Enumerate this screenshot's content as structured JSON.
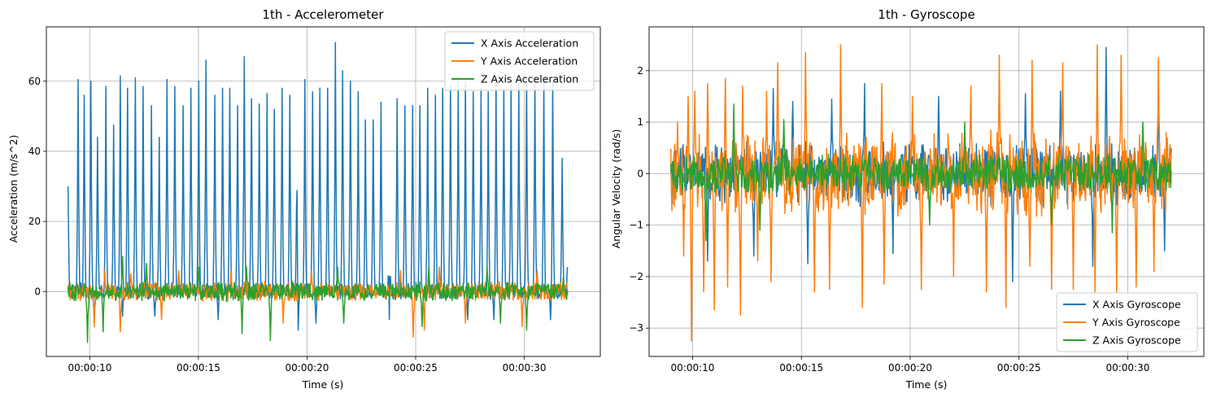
{
  "colors": {
    "x": "#1f77b4",
    "y": "#ff7f0e",
    "z": "#2ca02c",
    "grid": "#b0b0b0"
  },
  "chart_data": [
    {
      "type": "line",
      "title": "1th - Accelerometer",
      "xlabel": "Time (s)",
      "ylabel": "Acceleration (m/s^2)",
      "xlim_seconds": [
        8.0,
        33.5
      ],
      "ylim": [
        -18.5,
        75.5
      ],
      "x_ticks": [
        {
          "value": 10,
          "label": "00:00:10"
        },
        {
          "value": 15,
          "label": "00:00:15"
        },
        {
          "value": 20,
          "label": "00:00:20"
        },
        {
          "value": 25,
          "label": "00:00:25"
        },
        {
          "value": 30,
          "label": "00:00:30"
        }
      ],
      "y_ticks": [
        {
          "value": 0,
          "label": "0"
        },
        {
          "value": 20,
          "label": "20"
        },
        {
          "value": 40,
          "label": "40"
        },
        {
          "value": 60,
          "label": "60"
        }
      ],
      "grid": true,
      "legend_position": "top-right",
      "time_range_seconds": [
        9.0,
        32.0
      ],
      "series": [
        {
          "name": "X Axis Acceleration",
          "color_key": "x",
          "baseline": 0,
          "noise": 3.5,
          "start_value": 30,
          "end_value": 7,
          "peaks": [
            {
              "t": 9.45,
              "v": 60.5
            },
            {
              "t": 9.75,
              "v": 56
            },
            {
              "t": 10.05,
              "v": 60
            },
            {
              "t": 10.35,
              "v": 44
            },
            {
              "t": 10.75,
              "v": 58.5
            },
            {
              "t": 11.1,
              "v": 47.5
            },
            {
              "t": 11.4,
              "v": 61.5
            },
            {
              "t": 11.75,
              "v": 58
            },
            {
              "t": 12.1,
              "v": 61
            },
            {
              "t": 12.45,
              "v": 58.5
            },
            {
              "t": 12.85,
              "v": 53
            },
            {
              "t": 13.2,
              "v": 44
            },
            {
              "t": 13.55,
              "v": 60.5
            },
            {
              "t": 13.9,
              "v": 58.5
            },
            {
              "t": 14.3,
              "v": 53
            },
            {
              "t": 14.65,
              "v": 58
            },
            {
              "t": 15.0,
              "v": 60
            },
            {
              "t": 15.35,
              "v": 66
            },
            {
              "t": 15.75,
              "v": 56
            },
            {
              "t": 16.1,
              "v": 58
            },
            {
              "t": 16.45,
              "v": 58
            },
            {
              "t": 16.8,
              "v": 53
            },
            {
              "t": 17.1,
              "v": 67
            },
            {
              "t": 17.45,
              "v": 55
            },
            {
              "t": 17.8,
              "v": 53.5
            },
            {
              "t": 18.15,
              "v": 56.5
            },
            {
              "t": 18.5,
              "v": 52
            },
            {
              "t": 18.85,
              "v": 58
            },
            {
              "t": 19.2,
              "v": 56
            },
            {
              "t": 19.55,
              "v": 54
            },
            {
              "t": 19.9,
              "v": 60.5
            },
            {
              "t": 20.25,
              "v": 57
            },
            {
              "t": 20.6,
              "v": 58
            },
            {
              "t": 20.95,
              "v": 58
            },
            {
              "t": 21.3,
              "v": 71
            },
            {
              "t": 21.65,
              "v": 63
            },
            {
              "t": 22.0,
              "v": 60
            },
            {
              "t": 22.35,
              "v": 57
            },
            {
              "t": 22.7,
              "v": 49
            },
            {
              "t": 23.05,
              "v": 49
            },
            {
              "t": 23.4,
              "v": 54
            },
            {
              "t": 23.8,
              "v": 57
            },
            {
              "t": 24.15,
              "v": 55
            },
            {
              "t": 24.5,
              "v": 53
            },
            {
              "t": 24.85,
              "v": 53
            },
            {
              "t": 25.2,
              "v": 53
            },
            {
              "t": 25.55,
              "v": 58
            },
            {
              "t": 25.9,
              "v": 56
            },
            {
              "t": 26.25,
              "v": 58
            },
            {
              "t": 26.6,
              "v": 59
            },
            {
              "t": 26.95,
              "v": 60
            },
            {
              "t": 27.3,
              "v": 60
            },
            {
              "t": 27.65,
              "v": 57
            },
            {
              "t": 28.0,
              "v": 58
            },
            {
              "t": 28.35,
              "v": 57
            },
            {
              "t": 28.7,
              "v": 60
            },
            {
              "t": 29.05,
              "v": 58
            },
            {
              "t": 29.4,
              "v": 60
            },
            {
              "t": 29.75,
              "v": 59
            },
            {
              "t": 30.1,
              "v": 61
            },
            {
              "t": 30.5,
              "v": 60
            },
            {
              "t": 30.9,
              "v": 60
            },
            {
              "t": 31.3,
              "v": 60
            },
            {
              "t": 31.75,
              "v": 38
            }
          ],
          "dips": [
            {
              "t": 10.2,
              "v": -8
            },
            {
              "t": 11.5,
              "v": -7
            },
            {
              "t": 13.0,
              "v": -7
            },
            {
              "t": 15.9,
              "v": -8
            },
            {
              "t": 19.6,
              "v": -11
            },
            {
              "t": 20.4,
              "v": -9
            },
            {
              "t": 23.8,
              "v": -8
            },
            {
              "t": 27.4,
              "v": -8
            },
            {
              "t": 28.6,
              "v": -8
            },
            {
              "t": 31.2,
              "v": -8
            }
          ]
        },
        {
          "name": "Y Axis Acceleration",
          "color_key": "y",
          "baseline": 0,
          "noise": 4,
          "peaks": [
            {
              "t": 10.7,
              "v": 6
            },
            {
              "t": 11.9,
              "v": 5
            },
            {
              "t": 14.1,
              "v": 6
            },
            {
              "t": 16.5,
              "v": 6
            },
            {
              "t": 20.2,
              "v": 6
            },
            {
              "t": 24.3,
              "v": 6
            },
            {
              "t": 26.1,
              "v": 7
            },
            {
              "t": 30.6,
              "v": 6
            }
          ],
          "dips": [
            {
              "t": 10.2,
              "v": -10
            },
            {
              "t": 11.4,
              "v": -11.5
            },
            {
              "t": 13.3,
              "v": -8
            },
            {
              "t": 18.9,
              "v": -9
            },
            {
              "t": 24.9,
              "v": -13
            },
            {
              "t": 25.4,
              "v": -11
            },
            {
              "t": 27.3,
              "v": -9
            },
            {
              "t": 29.9,
              "v": -10
            }
          ]
        },
        {
          "name": "Z Axis Acceleration",
          "color_key": "z",
          "baseline": 0,
          "noise": 4,
          "peaks": [
            {
              "t": 11.5,
              "v": 10
            },
            {
              "t": 12.6,
              "v": 8
            },
            {
              "t": 15.0,
              "v": 7
            },
            {
              "t": 17.2,
              "v": 7
            },
            {
              "t": 21.4,
              "v": 7
            },
            {
              "t": 25.6,
              "v": 7
            },
            {
              "t": 28.3,
              "v": 7
            },
            {
              "t": 31.8,
              "v": 4
            }
          ],
          "dips": [
            {
              "t": 9.9,
              "v": -14.5
            },
            {
              "t": 10.6,
              "v": -11.5
            },
            {
              "t": 17.0,
              "v": -12
            },
            {
              "t": 18.3,
              "v": -14
            },
            {
              "t": 21.7,
              "v": -9
            },
            {
              "t": 25.3,
              "v": -10
            },
            {
              "t": 28.9,
              "v": -9
            },
            {
              "t": 30.1,
              "v": -11
            }
          ]
        }
      ]
    },
    {
      "type": "line",
      "title": "1th - Gyroscope",
      "xlabel": "Time (s)",
      "ylabel": "Angular Velocity (rad/s)",
      "xlim_seconds": [
        8.0,
        33.5
      ],
      "ylim": [
        -3.55,
        2.85
      ],
      "x_ticks": [
        {
          "value": 10,
          "label": "00:00:10"
        },
        {
          "value": 15,
          "label": "00:00:15"
        },
        {
          "value": 20,
          "label": "00:00:20"
        },
        {
          "value": 25,
          "label": "00:00:25"
        },
        {
          "value": 30,
          "label": "00:00:30"
        }
      ],
      "y_ticks": [
        {
          "value": -3,
          "label": "−3"
        },
        {
          "value": -2,
          "label": "−2"
        },
        {
          "value": -1,
          "label": "−1"
        },
        {
          "value": 0,
          "label": "0"
        },
        {
          "value": 1,
          "label": "1"
        },
        {
          "value": 2,
          "label": "2"
        }
      ],
      "grid": true,
      "legend_position": "bottom-right",
      "time_range_seconds": [
        9.0,
        32.0
      ],
      "series": [
        {
          "name": "X Axis Gyroscope",
          "color_key": "x",
          "baseline": 0,
          "noise": 0.9,
          "peaks": [
            {
              "t": 13.7,
              "v": 1.65
            },
            {
              "t": 14.6,
              "v": 1.4
            },
            {
              "t": 16.4,
              "v": 1.45
            },
            {
              "t": 17.9,
              "v": 1.75
            },
            {
              "t": 21.3,
              "v": 1.5
            },
            {
              "t": 25.3,
              "v": 1.55
            },
            {
              "t": 26.9,
              "v": 1.6
            },
            {
              "t": 29.0,
              "v": 2.45
            },
            {
              "t": 31.4,
              "v": 1.5
            }
          ],
          "dips": [
            {
              "t": 10.7,
              "v": -1.7
            },
            {
              "t": 12.8,
              "v": -1.6
            },
            {
              "t": 15.3,
              "v": -1.75
            },
            {
              "t": 19.2,
              "v": -1.55
            },
            {
              "t": 24.7,
              "v": -2.1
            },
            {
              "t": 28.4,
              "v": -1.8
            },
            {
              "t": 31.7,
              "v": -1.5
            }
          ]
        },
        {
          "name": "Y Axis Gyroscope",
          "color_key": "y",
          "baseline": 0,
          "noise": 1.2,
          "peaks": [
            {
              "t": 9.3,
              "v": 1.0
            },
            {
              "t": 9.8,
              "v": 1.5
            },
            {
              "t": 10.1,
              "v": 1.6
            },
            {
              "t": 10.7,
              "v": 1.75
            },
            {
              "t": 11.5,
              "v": 1.85
            },
            {
              "t": 12.3,
              "v": 1.7
            },
            {
              "t": 13.4,
              "v": 1.6
            },
            {
              "t": 13.9,
              "v": 2.15
            },
            {
              "t": 15.2,
              "v": 2.35
            },
            {
              "t": 16.8,
              "v": 2.5
            },
            {
              "t": 18.7,
              "v": 1.75
            },
            {
              "t": 20.1,
              "v": 1.5
            },
            {
              "t": 22.8,
              "v": 1.7
            },
            {
              "t": 24.1,
              "v": 2.3
            },
            {
              "t": 25.6,
              "v": 2.2
            },
            {
              "t": 27.0,
              "v": 2.15
            },
            {
              "t": 28.6,
              "v": 2.5
            },
            {
              "t": 29.7,
              "v": 2.3
            },
            {
              "t": 31.4,
              "v": 2.25
            }
          ],
          "dips": [
            {
              "t": 9.6,
              "v": -1.6
            },
            {
              "t": 9.95,
              "v": -3.25
            },
            {
              "t": 10.5,
              "v": -2.3
            },
            {
              "t": 11.0,
              "v": -2.65
            },
            {
              "t": 11.6,
              "v": -2.2
            },
            {
              "t": 12.2,
              "v": -2.75
            },
            {
              "t": 13.0,
              "v": -1.7
            },
            {
              "t": 13.6,
              "v": -2.1
            },
            {
              "t": 15.6,
              "v": -2.3
            },
            {
              "t": 16.3,
              "v": -2.25
            },
            {
              "t": 17.8,
              "v": -2.6
            },
            {
              "t": 18.8,
              "v": -2.15
            },
            {
              "t": 20.5,
              "v": -2.25
            },
            {
              "t": 22.0,
              "v": -2.0
            },
            {
              "t": 23.5,
              "v": -2.3
            },
            {
              "t": 24.4,
              "v": -2.6
            },
            {
              "t": 25.5,
              "v": -1.8
            },
            {
              "t": 26.5,
              "v": -2.25
            },
            {
              "t": 27.5,
              "v": -2.25
            },
            {
              "t": 28.5,
              "v": -2.3
            },
            {
              "t": 29.5,
              "v": -2.3
            },
            {
              "t": 30.4,
              "v": -2.2
            },
            {
              "t": 31.2,
              "v": -1.9
            }
          ]
        },
        {
          "name": "Z Axis Gyroscope",
          "color_key": "z",
          "baseline": 0,
          "noise": 0.55,
          "peaks": [
            {
              "t": 11.9,
              "v": 1.35
            },
            {
              "t": 14.2,
              "v": 1.05
            },
            {
              "t": 22.5,
              "v": 1.0
            },
            {
              "t": 30.7,
              "v": 1.0
            }
          ],
          "dips": [
            {
              "t": 10.6,
              "v": -1.3
            },
            {
              "t": 13.1,
              "v": -1.1
            },
            {
              "t": 20.9,
              "v": -1.0
            },
            {
              "t": 26.5,
              "v": -1.0
            },
            {
              "t": 29.3,
              "v": -1.15
            }
          ]
        }
      ]
    }
  ]
}
